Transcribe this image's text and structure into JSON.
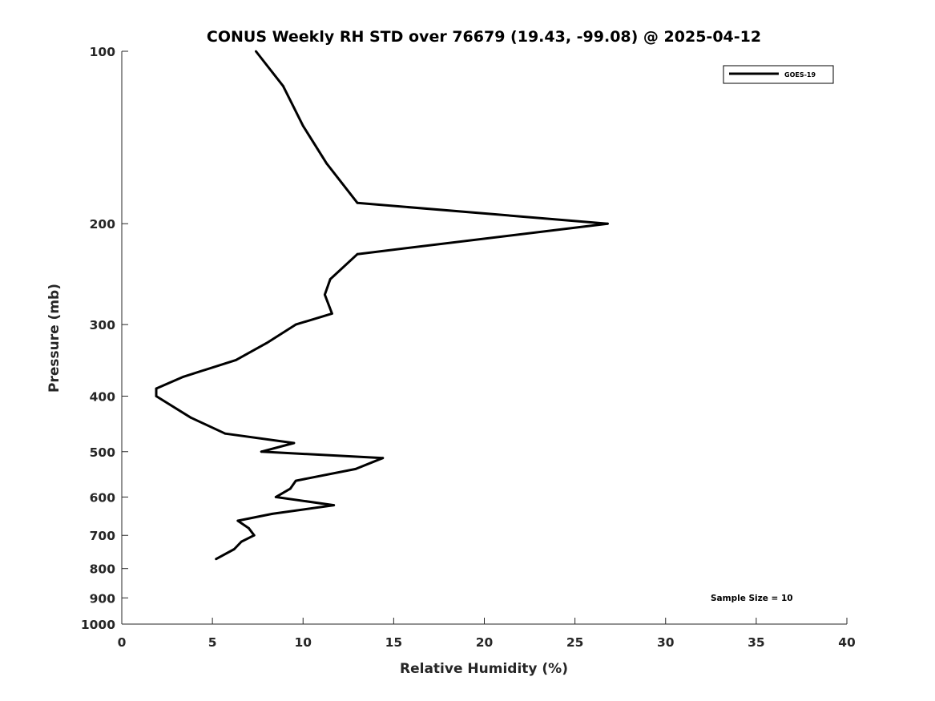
{
  "chart_data": {
    "type": "line",
    "title": "CONUS Weekly RH STD over 76679 (19.43, -99.08) @ 2025-04-12",
    "xlabel": "Relative Humidity (%)",
    "ylabel": "Pressure (mb)",
    "xlim": [
      0,
      40
    ],
    "ylim": [
      100,
      1000
    ],
    "y_scale": "log",
    "y_reversed": true,
    "x_ticks": [
      0,
      5,
      10,
      15,
      20,
      25,
      30,
      35,
      40
    ],
    "y_ticks": [
      100,
      200,
      300,
      400,
      500,
      600,
      700,
      800,
      900,
      1000
    ],
    "grid": false,
    "legend_position": "top-right",
    "series": [
      {
        "name": "GOES-19",
        "color": "#000000",
        "points": [
          [
            7.4,
            100
          ],
          [
            8.9,
            115
          ],
          [
            10.0,
            135
          ],
          [
            11.3,
            157
          ],
          [
            13.0,
            184
          ],
          [
            26.8,
            200
          ],
          [
            13.0,
            226
          ],
          [
            11.5,
            250
          ],
          [
            11.2,
            266
          ],
          [
            11.6,
            287
          ],
          [
            9.6,
            300
          ],
          [
            8.0,
            323
          ],
          [
            6.3,
            346
          ],
          [
            3.4,
            370
          ],
          [
            1.9,
            388
          ],
          [
            1.9,
            400
          ],
          [
            3.8,
            436
          ],
          [
            5.7,
            465
          ],
          [
            9.5,
            483
          ],
          [
            7.7,
            500
          ],
          [
            14.4,
            513
          ],
          [
            12.9,
            536
          ],
          [
            9.6,
            562
          ],
          [
            9.3,
            580
          ],
          [
            8.5,
            600
          ],
          [
            11.7,
            620
          ],
          [
            8.3,
            642
          ],
          [
            6.4,
            660
          ],
          [
            7.0,
            680
          ],
          [
            7.3,
            700
          ],
          [
            6.6,
            718
          ],
          [
            6.2,
            740
          ],
          [
            5.2,
            770
          ]
        ]
      }
    ],
    "annotations": [
      "Sample Size = 10"
    ]
  }
}
